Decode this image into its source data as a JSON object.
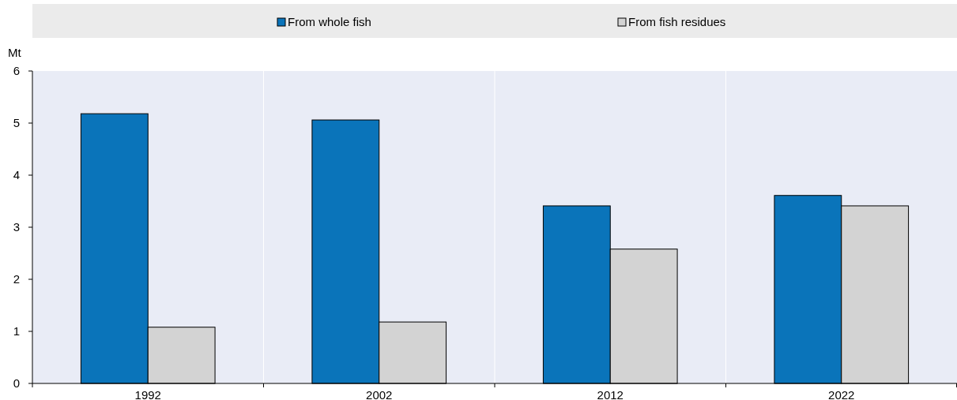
{
  "chart_data": {
    "type": "bar",
    "ylabel": "Mt",
    "categories": [
      "1992",
      "2002",
      "2012",
      "2022"
    ],
    "series": [
      {
        "name": "From whole fish",
        "color": "#0a74ba",
        "values": [
          5.18,
          5.06,
          3.41,
          3.61
        ]
      },
      {
        "name": "From fish residues",
        "color": "#d3d3d3",
        "values": [
          1.08,
          1.18,
          2.58,
          3.41
        ]
      }
    ],
    "ylim": [
      0,
      6
    ],
    "yticks": [
      0,
      1,
      2,
      3,
      4,
      5,
      6
    ],
    "grid": "x",
    "legend": "top"
  }
}
